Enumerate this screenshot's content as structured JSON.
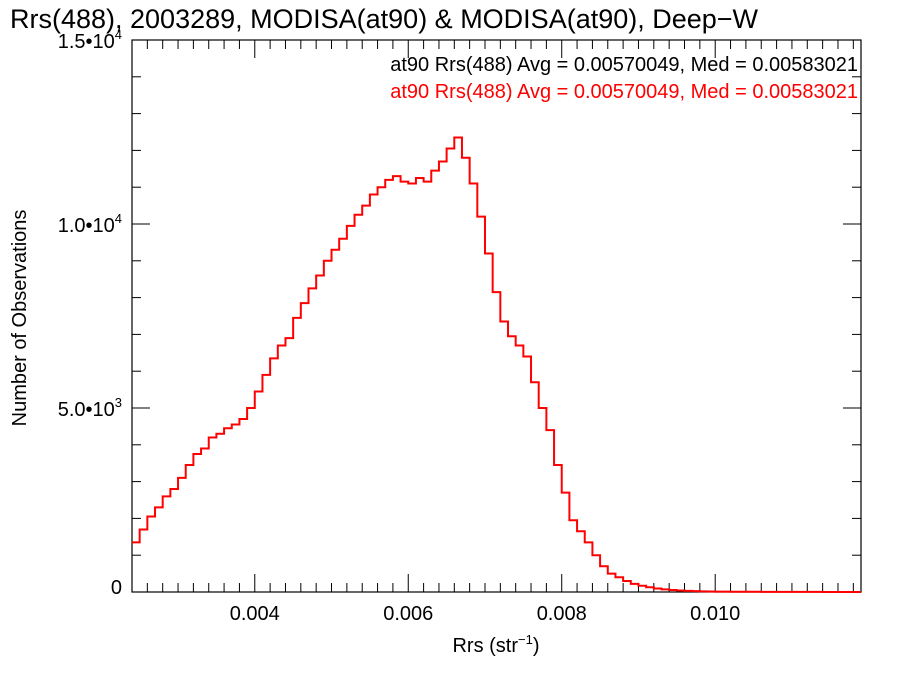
{
  "chart_data": {
    "type": "line",
    "title": "Rrs(488), 2003289, MODISA(at90) & MODISA(at90), Deep−W",
    "xlabel": {
      "base": "Rrs (str",
      "exp": "−1",
      "close": ")"
    },
    "ylabel": "Number of Observations",
    "xlim": [
      0.0024,
      0.0119
    ],
    "ylim": [
      0,
      15000
    ],
    "x_ticks": [
      {
        "value": 0.004,
        "label": "0.004"
      },
      {
        "value": 0.006,
        "label": "0.006"
      },
      {
        "value": 0.008,
        "label": "0.008"
      },
      {
        "value": 0.01,
        "label": "0.010"
      }
    ],
    "y_ticks": [
      {
        "value": 0,
        "mant": "0",
        "exp": ""
      },
      {
        "value": 5000,
        "mant": "5.0•10",
        "exp": "3"
      },
      {
        "value": 10000,
        "mant": "1.0•10",
        "exp": "4"
      },
      {
        "value": 15000,
        "mant": "1.5•10",
        "exp": "4"
      }
    ],
    "annotations": [
      {
        "text": "at90 Rrs(488) Avg = 0.00570049, Med = 0.00583021",
        "color": "#000000"
      },
      {
        "text": "at90 Rrs(488) Avg = 0.00570049, Med = 0.00583021",
        "color": "#ff0000"
      }
    ],
    "grid": false,
    "series": [
      {
        "color": "#ff0000",
        "step": true,
        "points": [
          [
            0.0024,
            1350
          ],
          [
            0.0025,
            1700
          ],
          [
            0.0026,
            2050
          ],
          [
            0.0027,
            2300
          ],
          [
            0.0028,
            2600
          ],
          [
            0.0029,
            2800
          ],
          [
            0.003,
            3100
          ],
          [
            0.0031,
            3450
          ],
          [
            0.0032,
            3750
          ],
          [
            0.0033,
            3900
          ],
          [
            0.0034,
            4200
          ],
          [
            0.0035,
            4300
          ],
          [
            0.0036,
            4450
          ],
          [
            0.0037,
            4550
          ],
          [
            0.0038,
            4700
          ],
          [
            0.0039,
            5000
          ],
          [
            0.004,
            5450
          ],
          [
            0.0041,
            5900
          ],
          [
            0.0042,
            6350
          ],
          [
            0.0043,
            6700
          ],
          [
            0.0044,
            6900
          ],
          [
            0.0045,
            7450
          ],
          [
            0.0046,
            7850
          ],
          [
            0.0047,
            8250
          ],
          [
            0.0048,
            8600
          ],
          [
            0.0049,
            9000
          ],
          [
            0.005,
            9300
          ],
          [
            0.0051,
            9600
          ],
          [
            0.0052,
            9950
          ],
          [
            0.0053,
            10250
          ],
          [
            0.0054,
            10500
          ],
          [
            0.0055,
            10800
          ],
          [
            0.0056,
            11000
          ],
          [
            0.0057,
            11200
          ],
          [
            0.0058,
            11300
          ],
          [
            0.0059,
            11150
          ],
          [
            0.006,
            11100
          ],
          [
            0.0061,
            11250
          ],
          [
            0.0062,
            11150
          ],
          [
            0.0063,
            11450
          ],
          [
            0.0064,
            11700
          ],
          [
            0.0065,
            12050
          ],
          [
            0.0066,
            12350
          ],
          [
            0.0067,
            11800
          ],
          [
            0.0068,
            11100
          ],
          [
            0.0069,
            10200
          ],
          [
            0.007,
            9200
          ],
          [
            0.0071,
            8150
          ],
          [
            0.0072,
            7350
          ],
          [
            0.0073,
            6950
          ],
          [
            0.0074,
            6700
          ],
          [
            0.0075,
            6400
          ],
          [
            0.0076,
            5700
          ],
          [
            0.0077,
            5000
          ],
          [
            0.0078,
            4400
          ],
          [
            0.0079,
            3450
          ],
          [
            0.008,
            2700
          ],
          [
            0.0081,
            1950
          ],
          [
            0.0082,
            1650
          ],
          [
            0.0083,
            1350
          ],
          [
            0.0084,
            1000
          ],
          [
            0.0085,
            700
          ],
          [
            0.0086,
            500
          ],
          [
            0.0087,
            400
          ],
          [
            0.0088,
            300
          ],
          [
            0.0089,
            220
          ],
          [
            0.009,
            170
          ],
          [
            0.0091,
            130
          ],
          [
            0.0092,
            95
          ],
          [
            0.0093,
            70
          ],
          [
            0.0094,
            55
          ],
          [
            0.0095,
            40
          ],
          [
            0.0096,
            30
          ],
          [
            0.0097,
            24
          ],
          [
            0.0098,
            18
          ],
          [
            0.0099,
            14
          ],
          [
            0.01,
            11
          ],
          [
            0.0102,
            8
          ],
          [
            0.0104,
            6
          ],
          [
            0.0106,
            4
          ],
          [
            0.0108,
            3
          ],
          [
            0.011,
            2
          ],
          [
            0.0112,
            2
          ],
          [
            0.0114,
            1
          ],
          [
            0.0116,
            1
          ],
          [
            0.0118,
            1
          ]
        ]
      }
    ]
  }
}
